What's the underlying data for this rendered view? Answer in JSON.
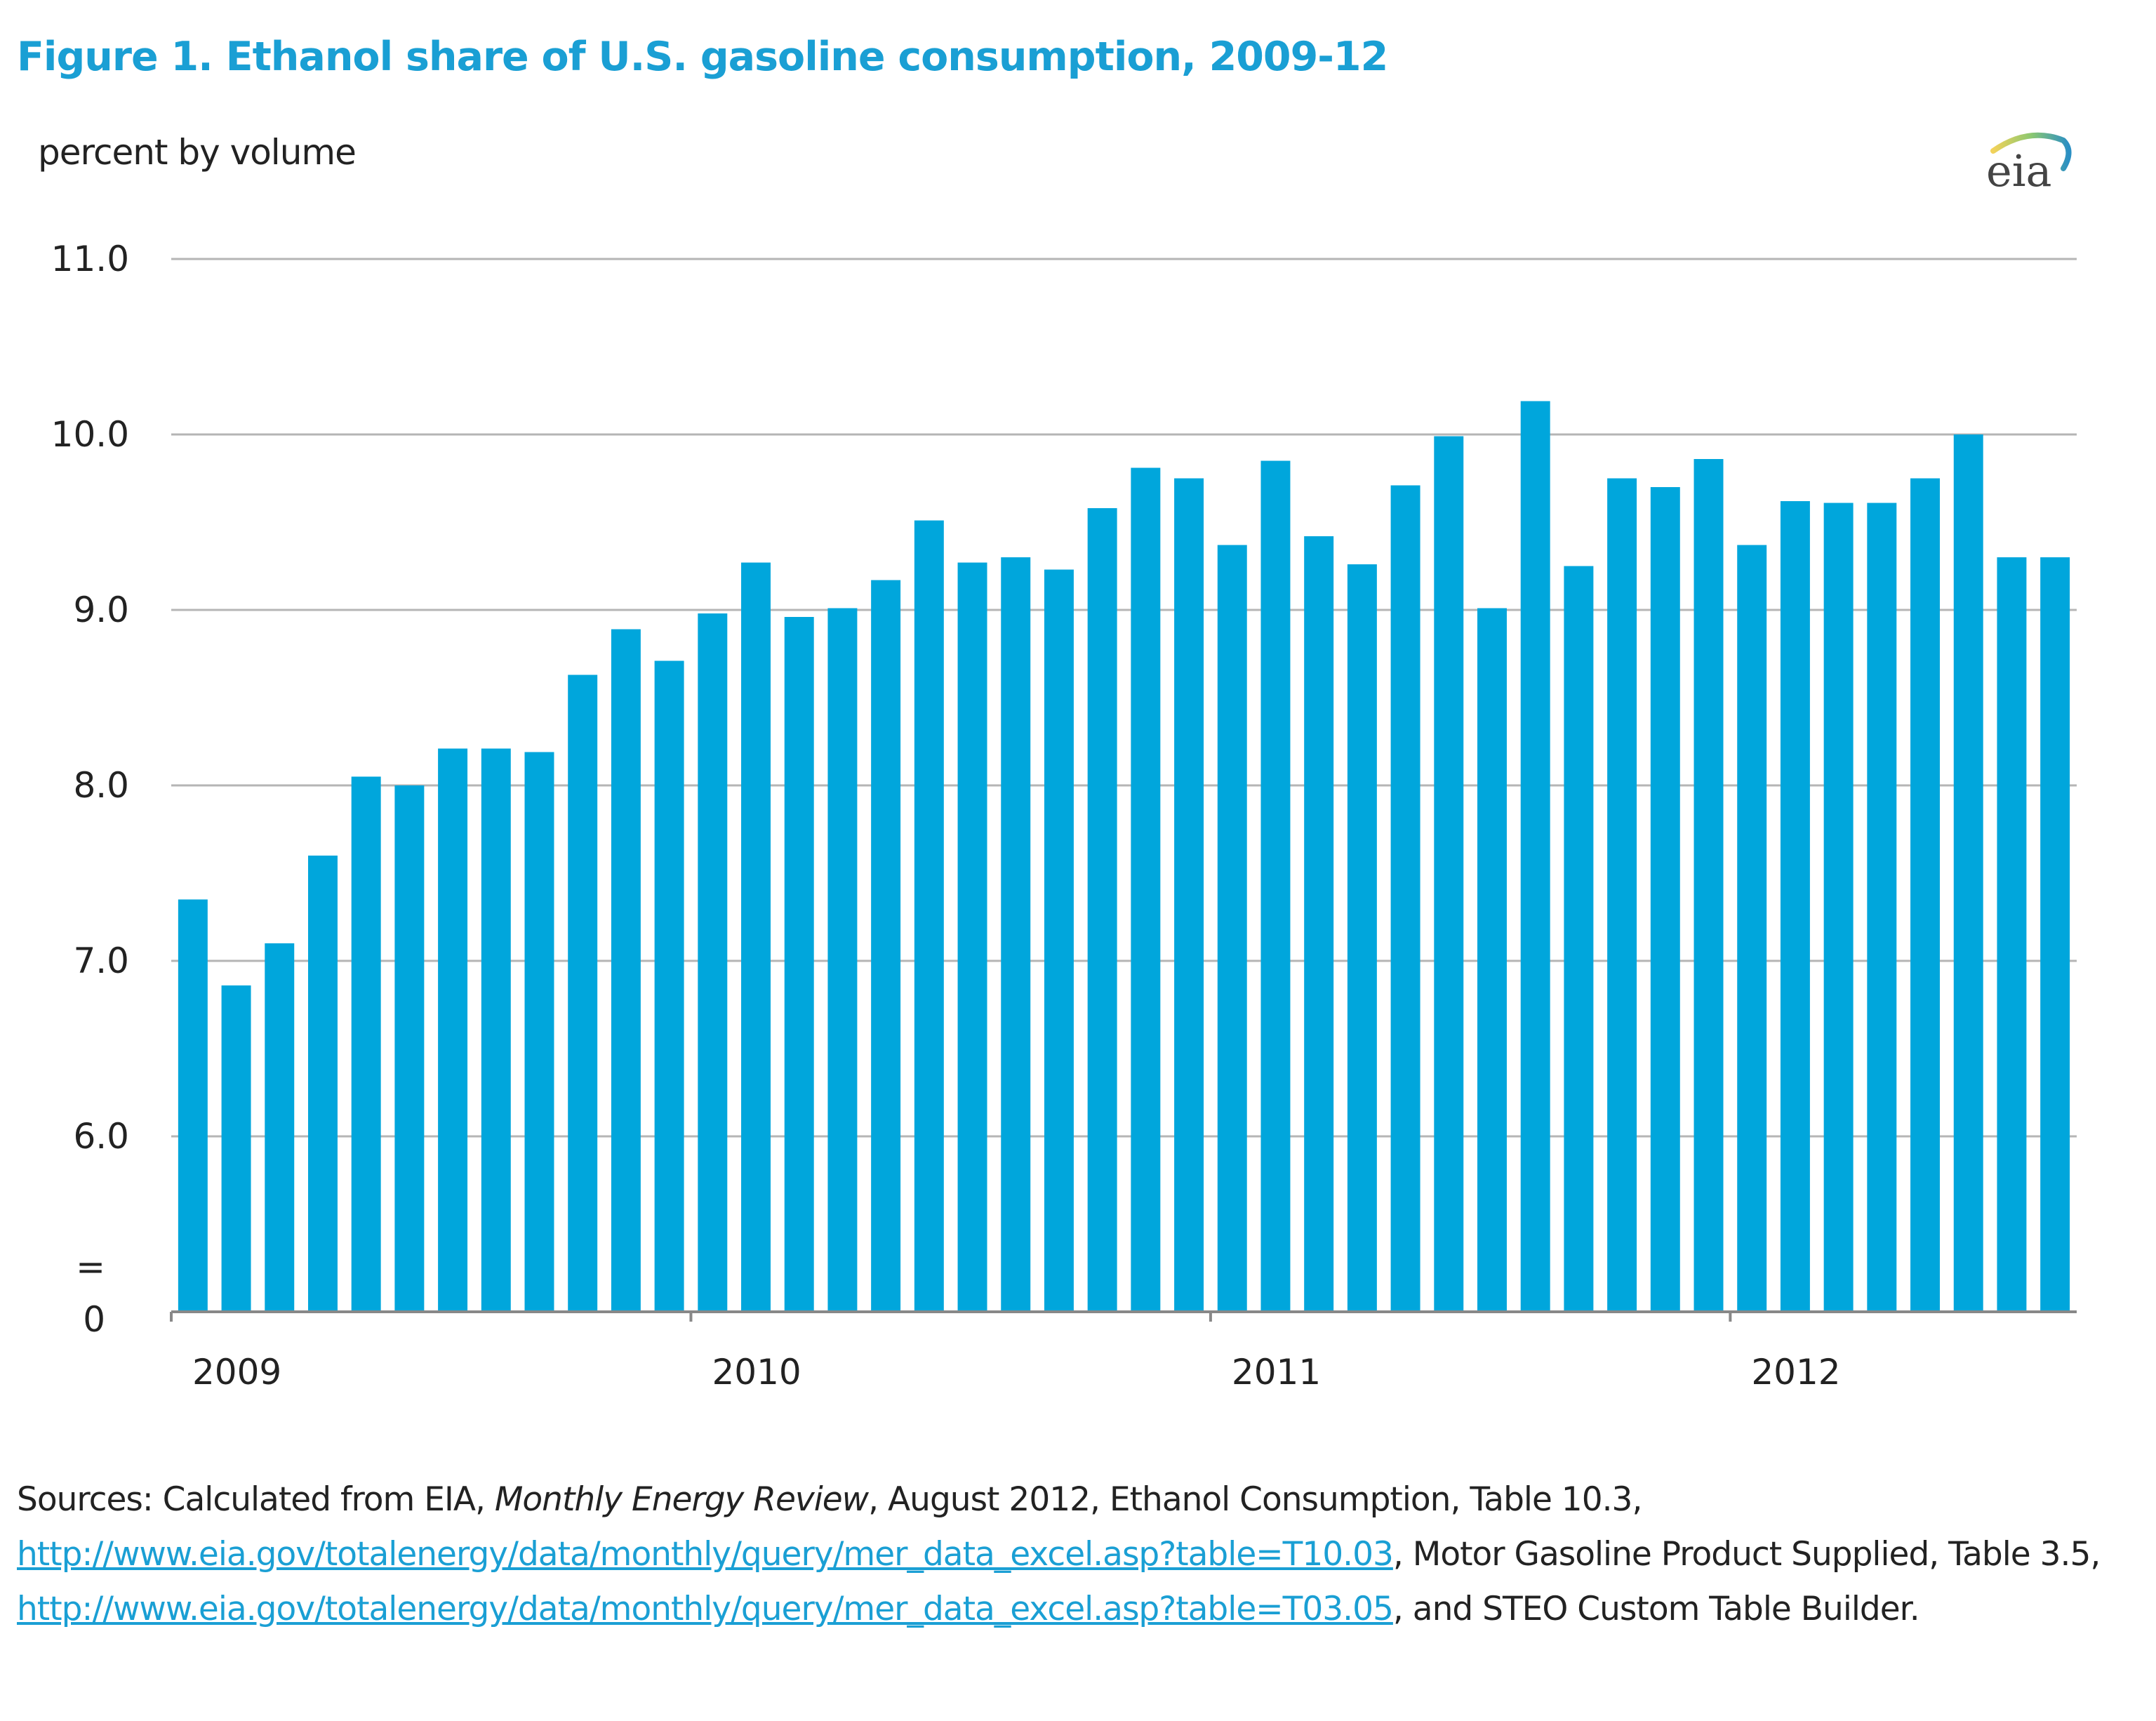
{
  "chart_data": {
    "type": "bar",
    "title": "Figure 1. Ethanol share of U.S. gasoline consumption, 2009-12",
    "ylabel": "percent by volume",
    "xlabel": "",
    "ylim": [
      6.0,
      11.0
    ],
    "axis_break": true,
    "y_ticks": [
      "11.0",
      "10.0",
      "9.0",
      "8.0",
      "7.0",
      "6.0"
    ],
    "y_break_symbol": "=",
    "y_zero_label": "0",
    "x_tick_labels": [
      "2009",
      "2010",
      "2011",
      "2012"
    ],
    "grid": true,
    "bar_color": "#00a6dc",
    "categories": [
      "Jan 2009",
      "Feb 2009",
      "Mar 2009",
      "Apr 2009",
      "May 2009",
      "Jun 2009",
      "Jul 2009",
      "Aug 2009",
      "Sep 2009",
      "Oct 2009",
      "Nov 2009",
      "Dec 2009",
      "Jan 2010",
      "Feb 2010",
      "Mar 2010",
      "Apr 2010",
      "May 2010",
      "Jun 2010",
      "Jul 2010",
      "Aug 2010",
      "Sep 2010",
      "Oct 2010",
      "Nov 2010",
      "Dec 2010",
      "Jan 2011",
      "Feb 2011",
      "Mar 2011",
      "Apr 2011",
      "May 2011",
      "Jun 2011",
      "Jul 2011",
      "Aug 2011",
      "Sep 2011",
      "Oct 2011",
      "Nov 2011",
      "Dec 2011",
      "Jan 2012",
      "Feb 2012",
      "Mar 2012",
      "Apr 2012",
      "May 2012",
      "Jun 2012",
      "Jul 2012",
      "Aug 2012"
    ],
    "values": [
      7.35,
      6.86,
      7.1,
      7.6,
      8.05,
      8.0,
      8.21,
      8.21,
      8.19,
      8.63,
      8.89,
      8.71,
      8.98,
      9.27,
      8.96,
      9.01,
      9.17,
      9.51,
      9.27,
      9.3,
      9.23,
      9.58,
      9.81,
      9.75,
      9.37,
      9.85,
      9.42,
      9.26,
      9.71,
      9.99,
      9.01,
      10.19,
      9.25,
      9.75,
      9.7,
      9.86,
      9.37,
      9.62,
      9.61,
      9.61,
      9.75,
      10.0,
      9.3,
      9.3
    ]
  },
  "logo_text": "eia",
  "sources": {
    "prefix": "Sources: Calculated from EIA, ",
    "publication": "Monthly Energy Review",
    "part1": ", August 2012, Ethanol Consumption, Table 10.3, ",
    "link1": "http://www.eia.gov/totalenergy/data/monthly/query/mer_data_excel.asp?table=T10.03",
    "part2": ", Motor Gasoline Product Supplied, Table 3.5, ",
    "link2": "http://www.eia.gov/totalenergy/data/monthly/query/mer_data_excel.asp?table=T03.05",
    "part3": ", and STEO Custom Table Builder."
  }
}
